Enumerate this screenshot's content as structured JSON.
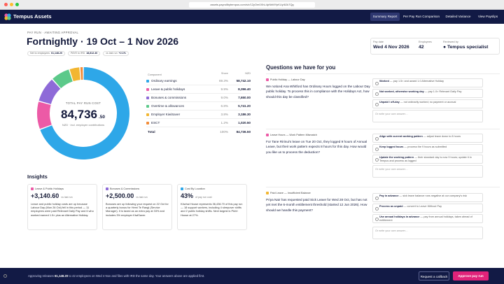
{
  "browser": {
    "url": "assets.payrollbytempus.com/s/r/12yOm0XhL4pNlrMYpKUy/8Jk7Qg"
  },
  "topbar": {
    "brand": "Tempus Assets",
    "nav": [
      "Summary Report",
      "Per Pay Run Comparison",
      "Detailed Variance",
      "View Payslips"
    ]
  },
  "header": {
    "crumb": "PAY RUN · AWAITING APPROVAL",
    "title": "Fortnightly · 19 Oct – 1 Nov 2026",
    "chips": [
      {
        "label": "Net to employees",
        "value": "61,148.20"
      },
      {
        "label": "PAYE to IRD",
        "value": "18,812.40"
      },
      {
        "label": "vs last run",
        "value": "+2.1%"
      }
    ]
  },
  "meta": {
    "pay_date_label": "Pay date",
    "pay_date": "Wed 4 Nov 2026",
    "employees_label": "Employees",
    "employees": "42",
    "reviewed_label": "Reviewed by",
    "reviewed": "● Tempus specialist"
  },
  "donut": {
    "top": "TOTAL PAY RUN COST",
    "amount": "84,736",
    "cents": ".50",
    "sub": "NZD · incl. employer contributions"
  },
  "chart_data": {
    "type": "pie",
    "title": "TOTAL PAY RUN COST",
    "columns": [
      "Component",
      "Share",
      "NZD"
    ],
    "categories": [
      "Ordinary earnings",
      "Leave & public holidays",
      "Bonuses & commissions",
      "Overtime & allowances",
      "Employer KiwiSaver",
      "ESCT"
    ],
    "values": [
      58742.1,
      8396.4,
      7650.0,
      5741.2,
      3186.3,
      1020.5
    ],
    "shares": [
      "69.3%",
      "9.9%",
      "9.0%",
      "6.8%",
      "3.8%",
      "1.2%"
    ],
    "colors": [
      "#2ea7e8",
      "#ec5aa6",
      "#8e6ad8",
      "#5cc98a",
      "#f2b631",
      "#f28c38"
    ],
    "total": {
      "label": "Total",
      "share": "100%",
      "value": "84,736.50"
    }
  },
  "table_rows": [
    {
      "name": "Ordinary earnings",
      "share": "69.3%",
      "nzd": "58,742.10"
    },
    {
      "name": "Leave & public holidays",
      "share": "9.9%",
      "nzd": "8,396.40"
    },
    {
      "name": "Bonuses & commissions",
      "share": "9.0%",
      "nzd": "7,650.00"
    },
    {
      "name": "Overtime & allowances",
      "share": "6.8%",
      "nzd": "5,741.20"
    },
    {
      "name": "Employer KiwiSaver",
      "share": "3.8%",
      "nzd": "3,186.30"
    },
    {
      "name": "ESCT",
      "share": "1.2%",
      "nzd": "1,020.50"
    }
  ],
  "insights": {
    "title": "Insights",
    "cards": [
      {
        "tag": "Leave & Public Holidays",
        "amount": "+3,140.60",
        "note": "vs last run",
        "body": "Leave and public holiday costs are up because Labour Day (Mon 26 Oct) fell in this period — 11 employees were paid Relevant Daily Pay and 6 who worked earned 1.5× plus an Alternative Holiday."
      },
      {
        "tag": "Bonuses & Commissions",
        "amount": "+2,500.00",
        "note": "vs last run",
        "body": "Bonuses are up following your request on 22 Oct for a quarterly bonus for Hemi Te Rangi (Service Manager). It is taxed as an extra pay at 33% and includes 3% employer KiwiSaver."
      },
      {
        "tag": "Cost By Location",
        "amount": "43%",
        "note": "of pay run cost",
        "body": "Kōwhai House represents 36,436.70 of this pay run — 18 support workers, including 4 sleepover shifts and 2 public holiday shifts. Next largest is Pūriri House at 27%."
      }
    ]
  },
  "questions": {
    "title": "Questions we have for you",
    "items": [
      {
        "tag": "Public Holiday — Labour Day",
        "text": "We noticed Ana Whitford has Ordinary Hours logged on the Labour Day public holiday. To process this in compliance with the Holidays Act, how should this day be classified?",
        "options": [
          {
            "head": "Worked",
            "rest": " — pay 1.5× and award 1.0 Alternative Holiday"
          },
          {
            "head": "Not worked, otherwise working day",
            "rest": " — pay 1.0× Relevant Daily Pay"
          },
          {
            "head": "Unpaid / off-day",
            "rest": " — not ordinarily worked; no payment or accrual"
          }
        ],
        "own": "Or write your own answer…"
      },
      {
        "tag": "Leave Hours — Work Pattern Mismatch",
        "text": "For Tane Ririnui's leave on Tue 20 Oct, they logged 9 hours of Annual Leave, but their work pattern expects 8 hours for this day. How would you like us to process the deduction?",
        "options": [
          {
            "head": "Align with current working pattern",
            "rest": " — adjust leave down to 8 hours"
          },
          {
            "head": "Keep logged hours",
            "rest": " — process the 9 hours as submitted"
          },
          {
            "head": "Update the working pattern",
            "rest": " — their standard day is now 9 hours; update it in Tempus and process as logged"
          }
        ],
        "own": "Or write your own answer…"
      },
      {
        "tag": "Paid Leave — Insufficient Balance",
        "text": "Priya Nair has requested paid Sick Leave for Wed 28 Oct, but has not yet met the 6-month entitlement threshold (started 12 Jun 2026). How should we handle this payment?",
        "options": [
          {
            "head": "Pay in advance",
            "rest": " — sick leave balance runs negative at our company's risk"
          },
          {
            "head": "Process as unpaid",
            "rest": " — convert to Leave Without Pay"
          },
          {
            "head": "Use annual holidays in advance",
            "rest": " — pay from annual holidays, taken ahead of entitlement"
          }
        ],
        "own": "Or write your own answer…"
      }
    ]
  },
  "footer": {
    "text_a": "Approving releases ",
    "amount": "61,148.20",
    "text_b": " to 42 employees on Wed 4 Nov and files with IRD the same day. Your answers above are applied first.",
    "callback": "Request a callback",
    "approve": "Approve pay run"
  },
  "colors": {
    "navy": "#121a45",
    "accent": "#e0237a"
  },
  "icons": [
    "tempus-logo-icon",
    "gear-icon"
  ]
}
